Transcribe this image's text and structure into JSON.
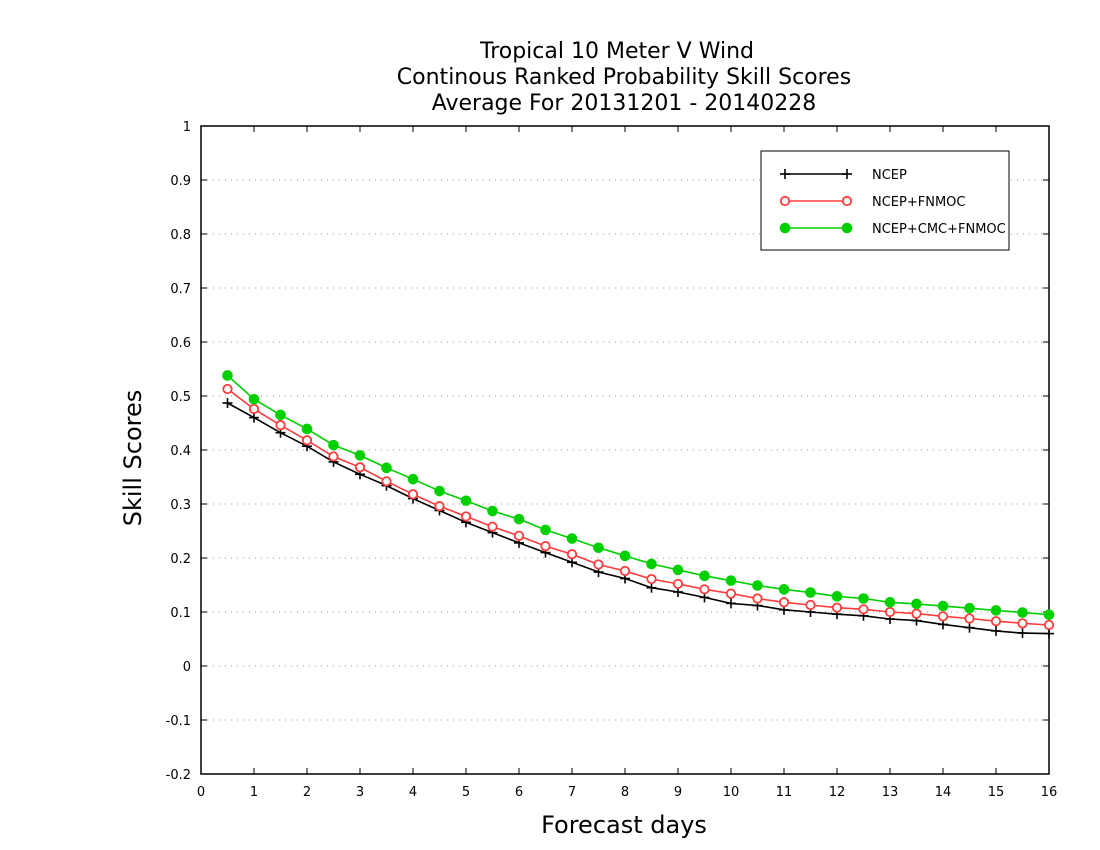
{
  "chart_data": {
    "type": "line",
    "title_lines": [
      "Tropical 10 Meter V Wind",
      "Continous Ranked Probability Skill Scores",
      "Average For 20131201 - 20140228"
    ],
    "xlabel": "Forecast days",
    "ylabel": "Skill Scores",
    "xlim": [
      0,
      16
    ],
    "ylim": [
      -0.2,
      1
    ],
    "xticks": [
      "0",
      "1",
      "2",
      "3",
      "4",
      "5",
      "6",
      "7",
      "8",
      "9",
      "10",
      "11",
      "12",
      "13",
      "14",
      "15",
      "16"
    ],
    "yticks": [
      "-0.2",
      "-0.1",
      "0",
      "0.1",
      "0.2",
      "0.3",
      "0.4",
      "0.5",
      "0.6",
      "0.7",
      "0.8",
      "0.9",
      "1"
    ],
    "grid": "horizontal dotted",
    "legend_position": "top-right",
    "x": [
      0.5,
      1,
      1.5,
      2,
      2.5,
      3,
      3.5,
      4,
      4.5,
      5,
      5.5,
      6,
      6.5,
      7,
      7.5,
      8,
      8.5,
      9,
      9.5,
      10,
      10.5,
      11,
      11.5,
      12,
      12.5,
      13,
      13.5,
      14,
      14.5,
      15,
      15.5,
      16
    ],
    "series": [
      {
        "name": "NCEP",
        "color": "#000000",
        "marker": "plus",
        "values": [
          0.487,
          0.46,
          0.432,
          0.407,
          0.378,
          0.355,
          0.334,
          0.31,
          0.288,
          0.266,
          0.247,
          0.228,
          0.21,
          0.192,
          0.174,
          0.162,
          0.145,
          0.137,
          0.127,
          0.116,
          0.112,
          0.104,
          0.1,
          0.096,
          0.093,
          0.087,
          0.084,
          0.077,
          0.071,
          0.065,
          0.061,
          0.06
        ]
      },
      {
        "name": "NCEP+FNMOC",
        "color": "#ff3b3b",
        "marker": "open-circle",
        "values": [
          0.513,
          0.476,
          0.446,
          0.418,
          0.388,
          0.368,
          0.342,
          0.318,
          0.296,
          0.277,
          0.258,
          0.241,
          0.222,
          0.207,
          0.188,
          0.176,
          0.161,
          0.152,
          0.142,
          0.134,
          0.125,
          0.118,
          0.113,
          0.108,
          0.105,
          0.1,
          0.097,
          0.092,
          0.088,
          0.083,
          0.079,
          0.076
        ]
      },
      {
        "name": "NCEP+CMC+FNMOC",
        "color": "#00d000",
        "marker": "filled-circle",
        "values": [
          0.538,
          0.494,
          0.465,
          0.439,
          0.409,
          0.39,
          0.367,
          0.346,
          0.324,
          0.306,
          0.287,
          0.272,
          0.252,
          0.236,
          0.219,
          0.204,
          0.189,
          0.178,
          0.167,
          0.158,
          0.149,
          0.142,
          0.136,
          0.129,
          0.125,
          0.118,
          0.115,
          0.111,
          0.107,
          0.103,
          0.099,
          0.095
        ]
      }
    ]
  }
}
